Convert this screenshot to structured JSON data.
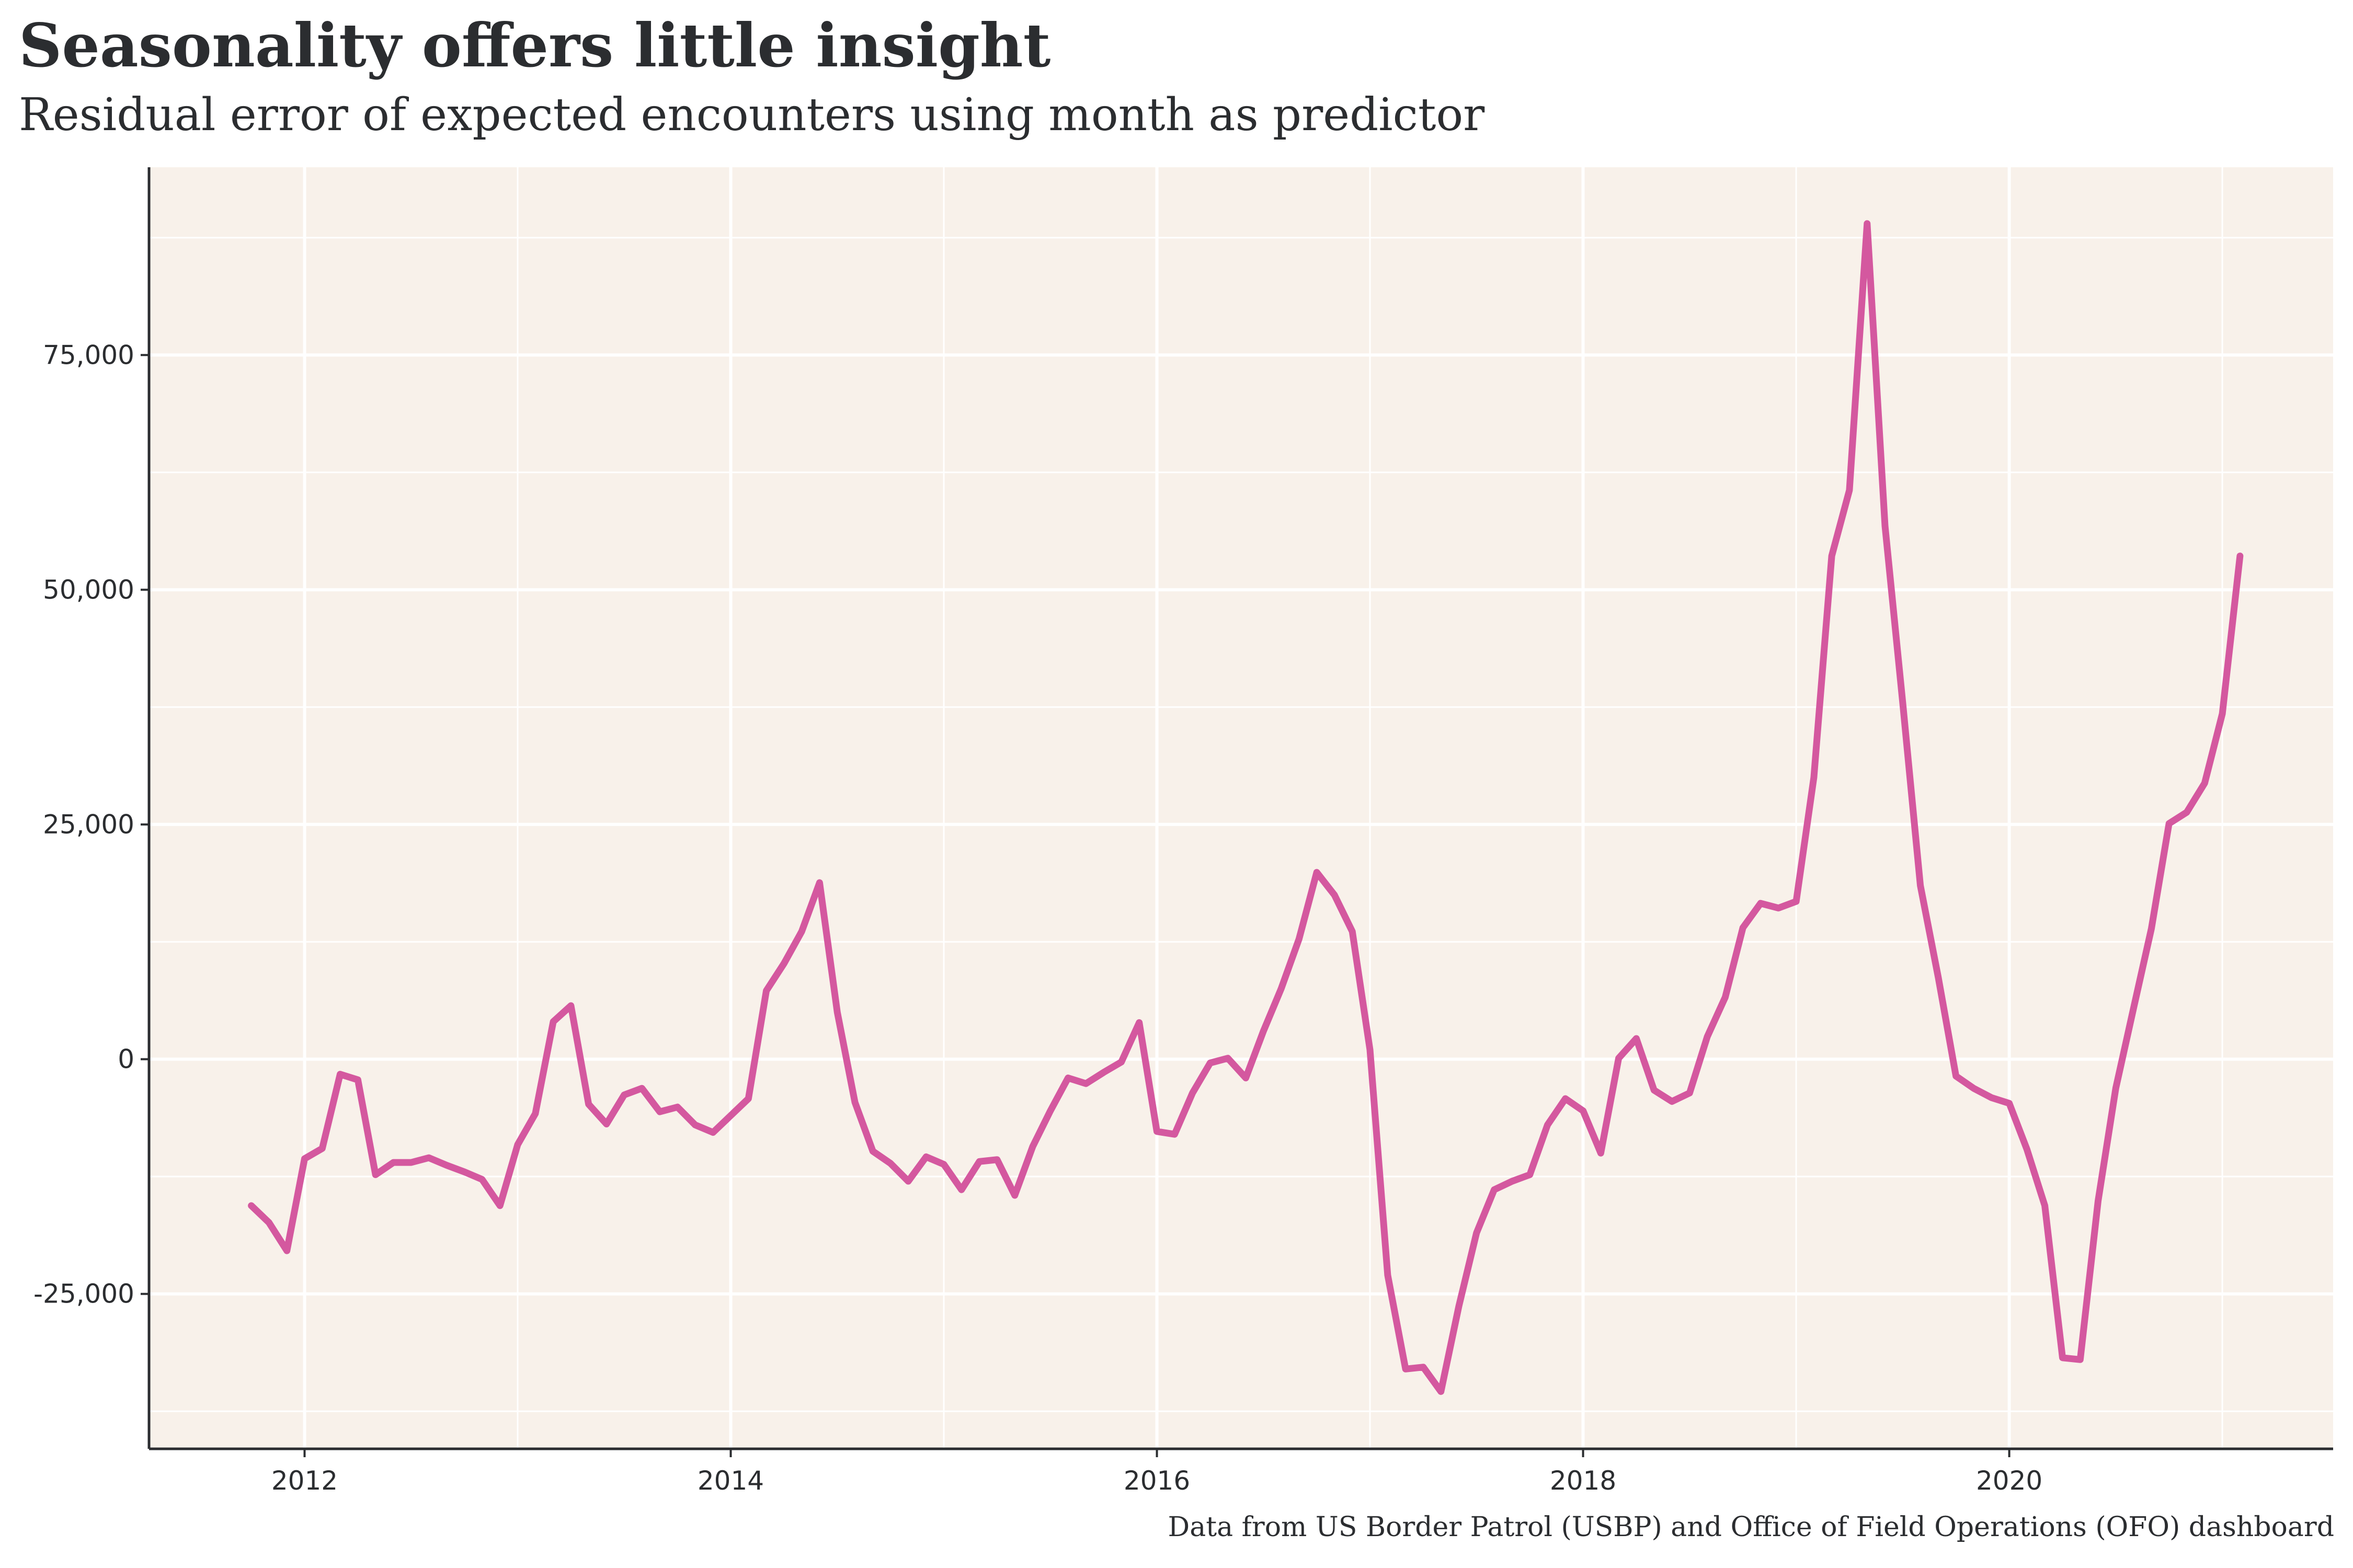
{
  "chart_data": {
    "type": "line",
    "title": "Seasonality offers little insight",
    "subtitle": "Residual error of expected encounters using month as predictor",
    "caption": "Data from US Border Patrol (USBP) and Office of Field Operations (OFO) dashboard",
    "xlabel": "",
    "ylabel": "",
    "xlim": [
      2011.27,
      2021.52
    ],
    "ylim": [
      -41500,
      95000
    ],
    "x_ticks": [
      2012,
      2014,
      2016,
      2018,
      2020
    ],
    "x_tick_labels": [
      "2012",
      "2014",
      "2016",
      "2018",
      "2020"
    ],
    "y_ticks": [
      -25000,
      0,
      25000,
      50000,
      75000
    ],
    "y_tick_labels": [
      "-25,000",
      "0",
      "25,000",
      "50,000",
      "75,000"
    ],
    "grid": true,
    "legend": "none",
    "colors": {
      "line": "#d4589f",
      "panel": "#f8f1ea",
      "grid": "#ffffff",
      "axis": "#2b2d30"
    },
    "series": [
      {
        "x": [
          2011.75,
          2011.833,
          2011.917,
          2012.0,
          2012.083,
          2012.167,
          2012.25,
          2012.333,
          2012.417,
          2012.5,
          2012.583,
          2012.667,
          2012.75,
          2012.833,
          2012.917,
          2013.0,
          2013.083,
          2013.167,
          2013.25,
          2013.333,
          2013.417,
          2013.5,
          2013.583,
          2013.667,
          2013.75,
          2013.833,
          2013.917,
          2014.0,
          2014.083,
          2014.167,
          2014.25,
          2014.333,
          2014.417,
          2014.5,
          2014.583,
          2014.667,
          2014.75,
          2014.833,
          2014.917,
          2015.0,
          2015.083,
          2015.167,
          2015.25,
          2015.333,
          2015.417,
          2015.5,
          2015.583,
          2015.667,
          2015.75,
          2015.833,
          2015.917,
          2016.0,
          2016.083,
          2016.167,
          2016.25,
          2016.333,
          2016.417,
          2016.5,
          2016.583,
          2016.667,
          2016.75,
          2016.833,
          2016.917,
          2017.0,
          2017.083,
          2017.167,
          2017.25,
          2017.333,
          2017.417,
          2017.5,
          2017.583,
          2017.667,
          2017.75,
          2017.833,
          2017.917,
          2018.0,
          2018.083,
          2018.167,
          2018.25,
          2018.333,
          2018.417,
          2018.5,
          2018.583,
          2018.667,
          2018.75,
          2018.833,
          2018.917,
          2019.0,
          2019.083,
          2019.167,
          2019.25,
          2019.333,
          2019.417,
          2019.5,
          2019.583,
          2019.667,
          2019.75,
          2019.833,
          2019.917,
          2020.0,
          2020.083,
          2020.167,
          2020.25,
          2020.333,
          2020.417,
          2020.5,
          2020.583,
          2020.667,
          2020.75,
          2020.833,
          2020.917,
          2021.0,
          2021.083
        ],
        "values": [
          -15600,
          -17400,
          -20400,
          -10600,
          -9500,
          -1600,
          -2200,
          -12300,
          -11000,
          -11000,
          -10500,
          -11300,
          -12000,
          -12800,
          -15600,
          -9100,
          -5800,
          4000,
          5700,
          -4800,
          -6900,
          -3800,
          -3100,
          -5600,
          -5100,
          -7000,
          -7800,
          -6000,
          -4200,
          7300,
          10200,
          13600,
          18800,
          5000,
          -4600,
          -9800,
          -11100,
          -13000,
          -10400,
          -11200,
          -13900,
          -10900,
          -10700,
          -14500,
          -9300,
          -5500,
          -2000,
          -2600,
          -1400,
          -300,
          3900,
          -7700,
          -8000,
          -3600,
          -400,
          100,
          -2000,
          3000,
          7500,
          12800,
          19900,
          17500,
          13600,
          1000,
          -23000,
          -33000,
          -32800,
          -35400,
          -26300,
          -18500,
          -13900,
          -13000,
          -12300,
          -7000,
          -4200,
          -5500,
          -10000,
          100,
          2200,
          -3300,
          -4500,
          -3600,
          2400,
          6600,
          14000,
          16600,
          16100,
          16800,
          30000,
          53600,
          60600,
          89000,
          56800,
          38000,
          18500,
          8700,
          -1800,
          -3100,
          -4100,
          -4700,
          -9600,
          -15600,
          -31800,
          -32000,
          -15100,
          -3100,
          5400,
          13900,
          25100,
          26300,
          29400,
          36800,
          53600
        ]
      }
    ]
  }
}
